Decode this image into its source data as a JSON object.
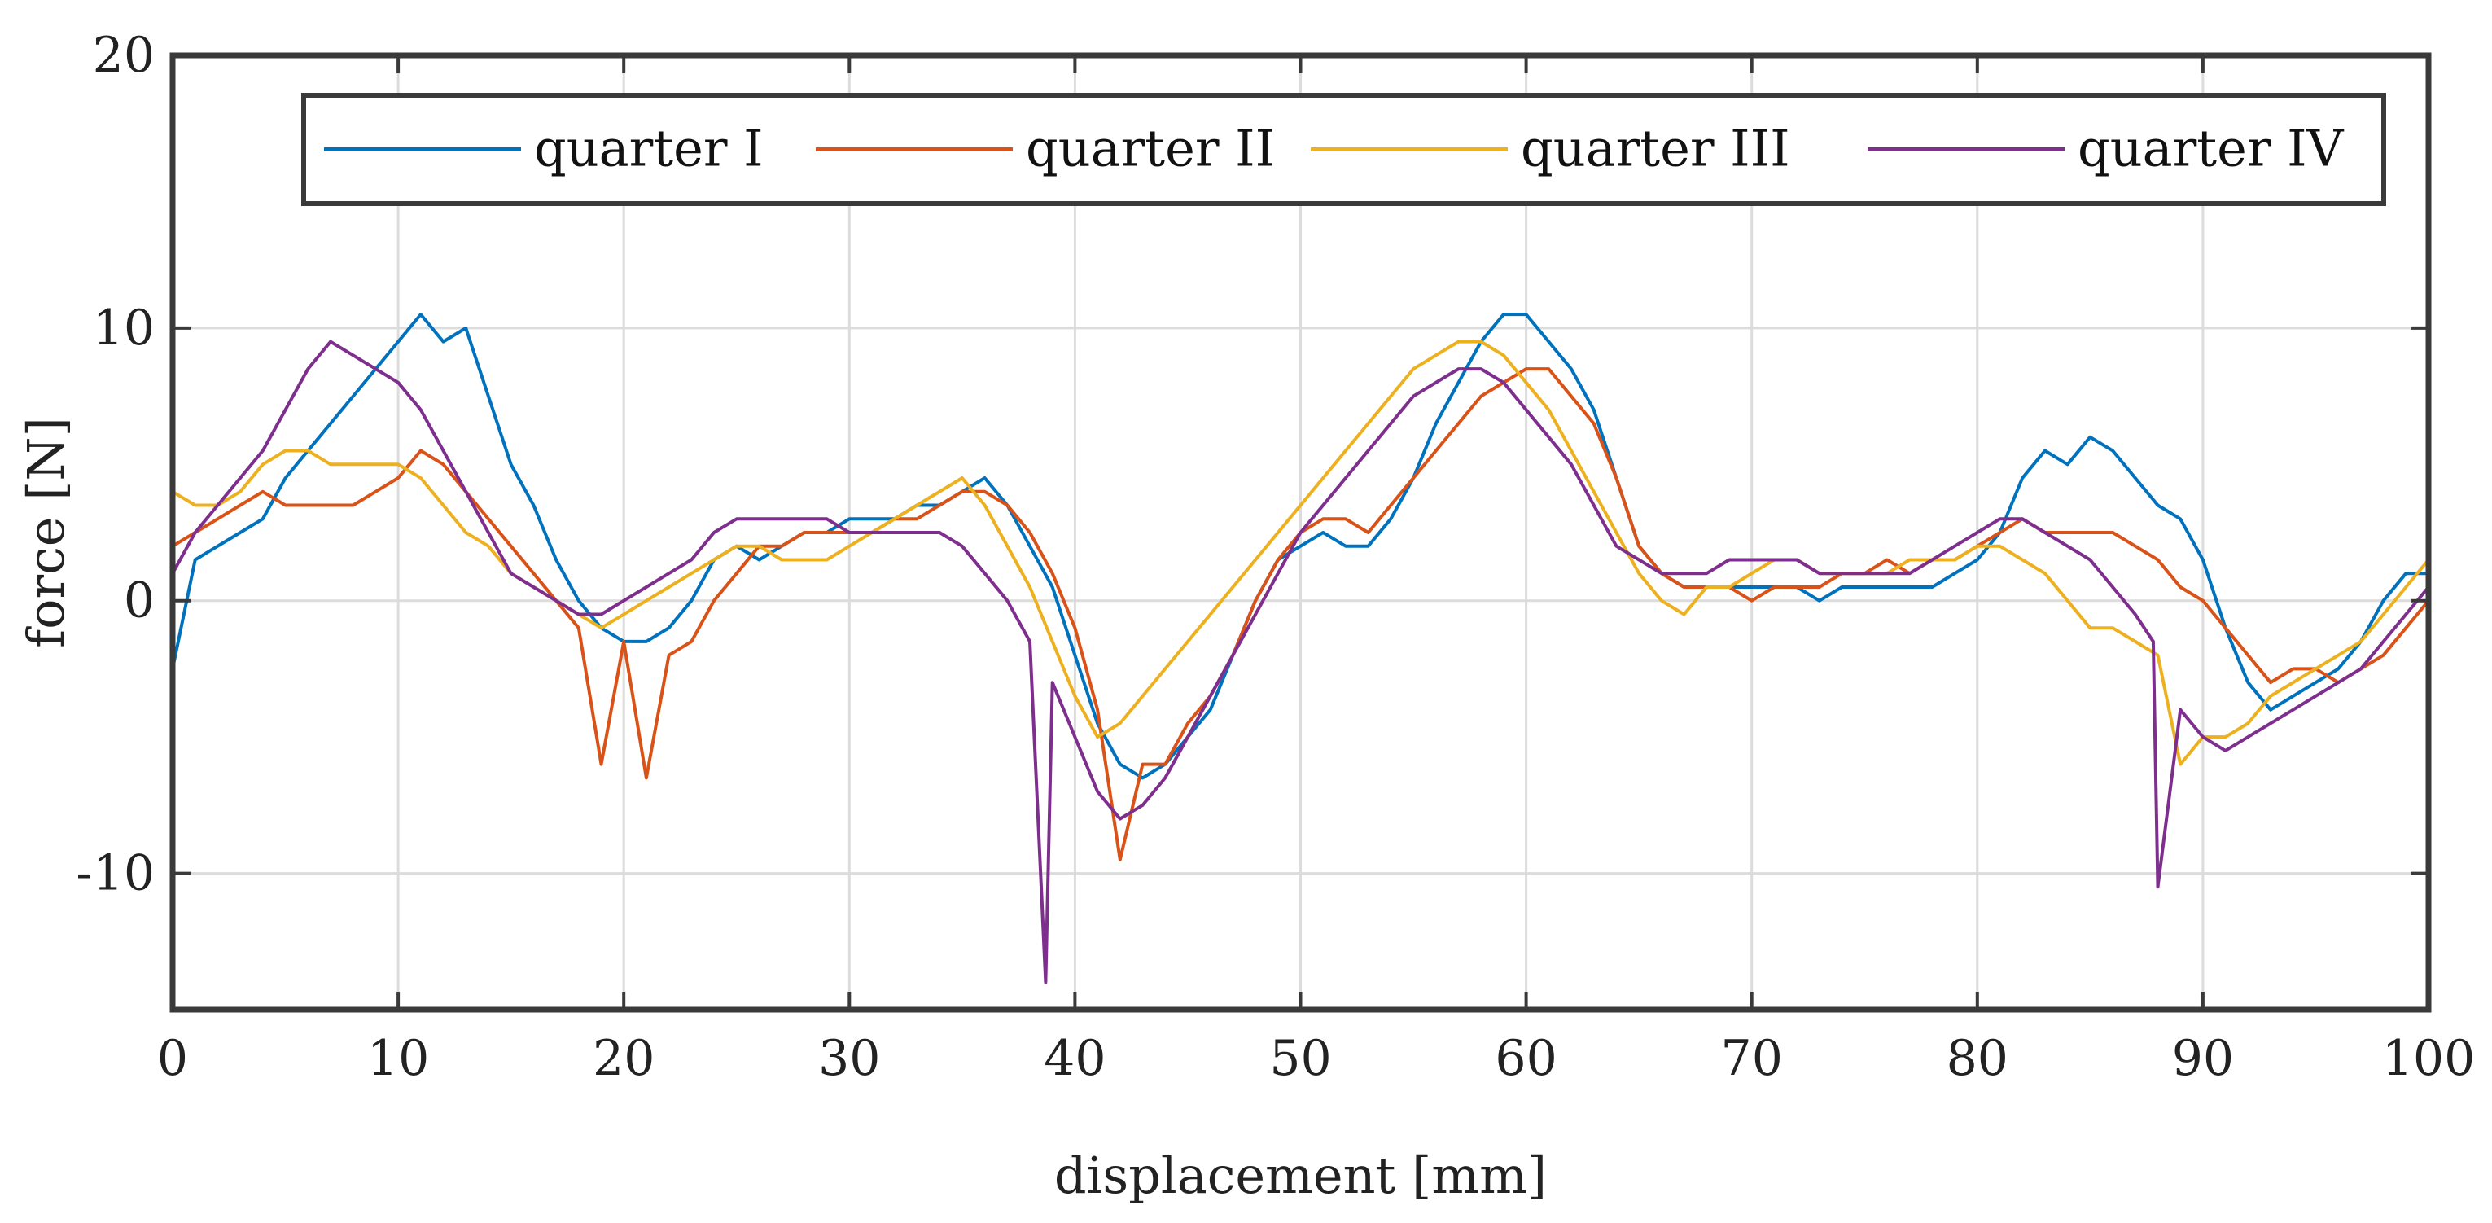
{
  "chart_data": {
    "type": "line",
    "title": "",
    "xlabel": "displacement [mm]",
    "ylabel": "force [N]",
    "xlim": [
      0,
      100
    ],
    "ylim": [
      -15,
      20
    ],
    "xticks": [
      0,
      10,
      20,
      30,
      40,
      50,
      60,
      70,
      80,
      90,
      100
    ],
    "yticks": [
      -10,
      0,
      10,
      20
    ],
    "grid": true,
    "legend_position": "top",
    "series": [
      {
        "name": "quarter I",
        "color": "#0072BD",
        "x": [
          0,
          1,
          2,
          3,
          4,
          5,
          6,
          7,
          8,
          9,
          10,
          11,
          12,
          13,
          14,
          15,
          16,
          17,
          18,
          19,
          20,
          21,
          22,
          23,
          24,
          25,
          26,
          27,
          28,
          29,
          30,
          31,
          32,
          33,
          34,
          35,
          36,
          37,
          38,
          39,
          40,
          41,
          42,
          43,
          44,
          45,
          46,
          47,
          48,
          49,
          50,
          51,
          52,
          53,
          54,
          55,
          56,
          57,
          58,
          59,
          60,
          61,
          62,
          63,
          64,
          65,
          66,
          67,
          68,
          69,
          70,
          71,
          72,
          73,
          74,
          75,
          76,
          77,
          78,
          79,
          80,
          81,
          82,
          83,
          84,
          85,
          86,
          87,
          88,
          89,
          90,
          91,
          92,
          93,
          94,
          95,
          96,
          97,
          98,
          99,
          100
        ],
        "y": [
          -2.5,
          1.5,
          2.0,
          2.5,
          3.0,
          4.5,
          5.5,
          6.5,
          7.5,
          8.5,
          9.5,
          10.5,
          9.5,
          10.0,
          7.5,
          5.0,
          3.5,
          1.5,
          0.0,
          -1.0,
          -1.5,
          -1.5,
          -1.0,
          0.0,
          1.5,
          2.0,
          1.5,
          2.0,
          2.5,
          2.5,
          3.0,
          3.0,
          3.0,
          3.5,
          3.5,
          4.0,
          4.5,
          3.5,
          2.0,
          0.5,
          -2.0,
          -4.5,
          -6.0,
          -6.5,
          -6.0,
          -5.0,
          -4.0,
          -2.0,
          0.0,
          1.5,
          2.0,
          2.5,
          2.0,
          2.0,
          3.0,
          4.5,
          6.5,
          8.0,
          9.5,
          10.5,
          10.5,
          9.5,
          8.5,
          7.0,
          4.5,
          2.0,
          1.0,
          0.5,
          0.5,
          0.5,
          0.5,
          0.5,
          0.5,
          0.0,
          0.5,
          0.5,
          0.5,
          0.5,
          0.5,
          1.0,
          1.5,
          2.5,
          4.5,
          5.5,
          5.0,
          6.0,
          5.5,
          4.5,
          3.5,
          3.0,
          1.5,
          -1.0,
          -3.0,
          -4.0,
          -3.5,
          -3.0,
          -2.5,
          -1.5,
          0.0,
          1.0,
          1.0
        ]
      },
      {
        "name": "quarter II",
        "color": "#D95319",
        "x": [
          0,
          1,
          2,
          3,
          4,
          5,
          6,
          7,
          8,
          9,
          10,
          11,
          12,
          13,
          14,
          15,
          16,
          17,
          18,
          19,
          20,
          21,
          22,
          23,
          24,
          25,
          26,
          27,
          28,
          29,
          30,
          31,
          32,
          33,
          34,
          35,
          36,
          37,
          38,
          39,
          40,
          41,
          42,
          43,
          44,
          45,
          46,
          47,
          48,
          49,
          50,
          51,
          52,
          53,
          54,
          55,
          56,
          57,
          58,
          59,
          60,
          61,
          62,
          63,
          64,
          65,
          66,
          67,
          68,
          69,
          70,
          71,
          72,
          73,
          74,
          75,
          76,
          77,
          78,
          79,
          80,
          81,
          82,
          83,
          84,
          85,
          86,
          87,
          88,
          89,
          90,
          91,
          92,
          93,
          94,
          95,
          96,
          97,
          98,
          99,
          100
        ],
        "y": [
          2.0,
          2.5,
          3.0,
          3.5,
          4.0,
          3.5,
          3.5,
          3.5,
          3.5,
          4.0,
          4.5,
          5.5,
          5.0,
          4.0,
          3.0,
          2.0,
          1.0,
          0.0,
          -1.0,
          -6.0,
          -1.5,
          -6.5,
          -2.0,
          -1.5,
          0.0,
          1.0,
          2.0,
          2.0,
          2.5,
          2.5,
          2.5,
          2.5,
          3.0,
          3.0,
          3.5,
          4.0,
          4.0,
          3.5,
          2.5,
          1.0,
          -1.0,
          -4.0,
          -9.5,
          -6.0,
          -6.0,
          -4.5,
          -3.5,
          -2.0,
          0.0,
          1.5,
          2.5,
          3.0,
          3.0,
          2.5,
          3.5,
          4.5,
          5.5,
          6.5,
          7.5,
          8.0,
          8.5,
          8.5,
          7.5,
          6.5,
          4.5,
          2.0,
          1.0,
          0.5,
          0.5,
          0.5,
          0.0,
          0.5,
          0.5,
          0.5,
          1.0,
          1.0,
          1.5,
          1.0,
          1.5,
          1.5,
          2.0,
          2.5,
          3.0,
          2.5,
          2.5,
          2.5,
          2.5,
          2.0,
          1.5,
          0.5,
          0.0,
          -1.0,
          -2.0,
          -3.0,
          -2.5,
          -2.5,
          -3.0,
          -2.5,
          -2.0,
          -1.0,
          0.0
        ]
      },
      {
        "name": "quarter III",
        "color": "#EDB120",
        "x": [
          0,
          1,
          2,
          3,
          4,
          5,
          6,
          7,
          8,
          9,
          10,
          11,
          12,
          13,
          14,
          15,
          16,
          17,
          18,
          19,
          20,
          21,
          22,
          23,
          24,
          25,
          26,
          27,
          28,
          29,
          30,
          31,
          32,
          33,
          34,
          35,
          36,
          37,
          38,
          39,
          40,
          41,
          42,
          43,
          44,
          45,
          46,
          47,
          48,
          49,
          50,
          51,
          52,
          53,
          54,
          55,
          56,
          57,
          58,
          59,
          60,
          61,
          62,
          63,
          64,
          65,
          66,
          67,
          68,
          69,
          70,
          71,
          72,
          73,
          74,
          75,
          76,
          77,
          78,
          79,
          80,
          81,
          82,
          83,
          84,
          85,
          86,
          87,
          88,
          89,
          90,
          91,
          92,
          93,
          94,
          95,
          96,
          97,
          98,
          99,
          100
        ],
        "y": [
          4.0,
          3.5,
          3.5,
          4.0,
          5.0,
          5.5,
          5.5,
          5.0,
          5.0,
          5.0,
          5.0,
          4.5,
          3.5,
          2.5,
          2.0,
          1.0,
          0.5,
          0.0,
          -0.5,
          -1.0,
          -0.5,
          0.0,
          0.5,
          1.0,
          1.5,
          2.0,
          2.0,
          1.5,
          1.5,
          1.5,
          2.0,
          2.5,
          3.0,
          3.5,
          4.0,
          4.5,
          3.5,
          2.0,
          0.5,
          -1.5,
          -3.5,
          -5.0,
          -4.5,
          -3.5,
          -2.5,
          -1.5,
          -0.5,
          0.5,
          1.5,
          2.5,
          3.5,
          4.5,
          5.5,
          6.5,
          7.5,
          8.5,
          9.0,
          9.5,
          9.5,
          9.0,
          8.0,
          7.0,
          5.5,
          4.0,
          2.5,
          1.0,
          0.0,
          -0.5,
          0.5,
          0.5,
          1.0,
          1.5,
          1.5,
          1.0,
          1.0,
          1.0,
          1.0,
          1.5,
          1.5,
          1.5,
          2.0,
          2.0,
          1.5,
          1.0,
          0.0,
          -1.0,
          -1.0,
          -1.5,
          -2.0,
          -6.0,
          -5.0,
          -5.0,
          -4.5,
          -3.5,
          -3.0,
          -2.5,
          -2.0,
          -1.5,
          -0.5,
          0.5,
          1.5
        ]
      },
      {
        "name": "quarter IV",
        "color": "#7E2F8E",
        "x": [
          0,
          1,
          2,
          3,
          4,
          5,
          6,
          7,
          8,
          9,
          10,
          11,
          12,
          13,
          14,
          15,
          16,
          17,
          18,
          19,
          20,
          21,
          22,
          23,
          24,
          25,
          26,
          27,
          28,
          29,
          30,
          31,
          32,
          33,
          34,
          35,
          36,
          37,
          38,
          38.7,
          39,
          40,
          41,
          42,
          43,
          44,
          45,
          46,
          47,
          48,
          49,
          50,
          51,
          52,
          53,
          54,
          55,
          56,
          57,
          58,
          59,
          60,
          61,
          62,
          63,
          64,
          65,
          66,
          67,
          68,
          69,
          70,
          71,
          72,
          73,
          74,
          75,
          76,
          77,
          78,
          79,
          80,
          81,
          82,
          83,
          84,
          85,
          86,
          87,
          87.8,
          88,
          89,
          90,
          91,
          92,
          93,
          94,
          95,
          96,
          97,
          98,
          99,
          100
        ],
        "y": [
          1.0,
          2.5,
          3.5,
          4.5,
          5.5,
          7.0,
          8.5,
          9.5,
          9.0,
          8.5,
          8.0,
          7.0,
          5.5,
          4.0,
          2.5,
          1.0,
          0.5,
          0.0,
          -0.5,
          -0.5,
          0.0,
          0.5,
          1.0,
          1.5,
          2.5,
          3.0,
          3.0,
          3.0,
          3.0,
          3.0,
          2.5,
          2.5,
          2.5,
          2.5,
          2.5,
          2.0,
          1.0,
          0.0,
          -1.5,
          -14.0,
          -3.0,
          -5.0,
          -7.0,
          -8.0,
          -7.5,
          -6.5,
          -5.0,
          -3.5,
          -2.0,
          -0.5,
          1.0,
          2.5,
          3.5,
          4.5,
          5.5,
          6.5,
          7.5,
          8.0,
          8.5,
          8.5,
          8.0,
          7.0,
          6.0,
          5.0,
          3.5,
          2.0,
          1.5,
          1.0,
          1.0,
          1.0,
          1.5,
          1.5,
          1.5,
          1.5,
          1.0,
          1.0,
          1.0,
          1.0,
          1.0,
          1.5,
          2.0,
          2.5,
          3.0,
          3.0,
          2.5,
          2.0,
          1.5,
          0.5,
          -0.5,
          -1.5,
          -10.5,
          -4.0,
          -5.0,
          -5.5,
          -5.0,
          -4.5,
          -4.0,
          -3.5,
          -3.0,
          -2.5,
          -1.5,
          -0.5,
          0.5
        ]
      }
    ]
  }
}
